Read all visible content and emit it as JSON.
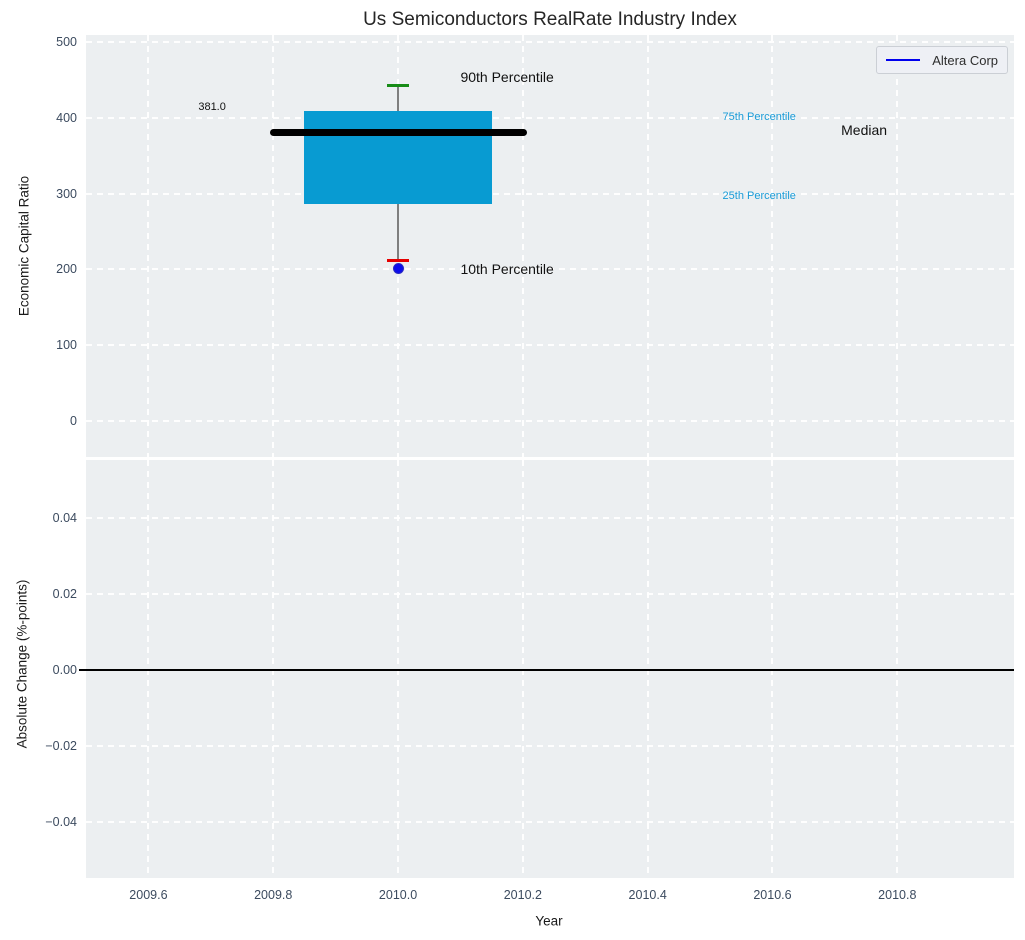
{
  "title": "Us Semiconductors RealRate Industry Index",
  "legend": {
    "label": "Altera Corp",
    "line_color": "#0000ee",
    "position": "upper right"
  },
  "colors": {
    "box_fill": "#089bd2",
    "median_line": "#000000",
    "p90_cap": "#178c17",
    "p10_cap": "#e50000",
    "company_dot": "#0d0deb",
    "whisker": "#7f7f7f",
    "plot_background": "#eceff1",
    "gridline": "#ffffff",
    "tick_label": "#3c4b5f",
    "percentile_label": "#1a9cd8",
    "zero_line": "#000000"
  },
  "chart_data": [
    {
      "type": "boxplot",
      "title": "Us Semiconductors RealRate Industry Index",
      "ylabel": "Economic Capital Ratio",
      "xlabel": "",
      "xlim": [
        2009.5,
        2010.987
      ],
      "ylim": [
        -47.5,
        509.2
      ],
      "yticks": [
        0,
        100,
        200,
        300,
        400,
        500
      ],
      "ytick_labels": [
        "0",
        "100",
        "200",
        "300",
        "400",
        "500"
      ],
      "xticks": [
        2009.6,
        2009.8,
        2010.0,
        2010.2,
        2010.4,
        2010.6,
        2010.8
      ],
      "grid": true,
      "box": {
        "x_center": 2010.0,
        "p90": 443,
        "p75": 409,
        "median": 381,
        "p25": 286,
        "p10": 212,
        "company_value": 201,
        "median_label": "381.0",
        "box_x_range": [
          2009.85,
          2010.151
        ],
        "median_x_range": [
          2009.795,
          2010.207
        ],
        "cap_x_range": [
          2009.982,
          2010.018
        ]
      },
      "annotations": [
        {
          "text": "90th Percentile",
          "x": 2010.1,
          "y": 454,
          "color": "#111111",
          "size": 14
        },
        {
          "text": "10th Percentile",
          "x": 2010.1,
          "y": 201,
          "color": "#111111",
          "size": 14
        },
        {
          "text": "75th Percentile",
          "x": 2010.52,
          "y": 401,
          "color": "#1a9cd8",
          "size": 11
        },
        {
          "text": "25th Percentile",
          "x": 2010.52,
          "y": 297,
          "color": "#1a9cd8",
          "size": 11
        },
        {
          "text": "Median",
          "x": 2010.71,
          "y": 384,
          "color": "#111111",
          "size": 14
        },
        {
          "text": "381.0",
          "x": 2009.68,
          "y": 414,
          "color": "#111111",
          "size": 11
        }
      ]
    },
    {
      "type": "line",
      "ylabel": "Absolute Change (%-points)",
      "xlabel": "Year",
      "xlim": [
        2009.5,
        2010.987
      ],
      "ylim": [
        -0.0547,
        0.0553
      ],
      "yticks": [
        -0.04,
        -0.02,
        0.0,
        0.02,
        0.04
      ],
      "ytick_labels": [
        "−0.04",
        "−0.02",
        "0.00",
        "0.02",
        "0.04"
      ],
      "xticks": [
        2009.6,
        2009.8,
        2010.0,
        2010.2,
        2010.4,
        2010.6,
        2010.8
      ],
      "xtick_labels": [
        "2009.6",
        "2009.8",
        "2010.0",
        "2010.2",
        "2010.4",
        "2010.6",
        "2010.8"
      ],
      "grid": true,
      "zero_line": {
        "y": 0.0,
        "color": "#000000"
      },
      "series": [
        {
          "name": "Altera Corp",
          "x": [
            2010.0
          ],
          "y": [
            0.0
          ]
        }
      ]
    }
  ]
}
